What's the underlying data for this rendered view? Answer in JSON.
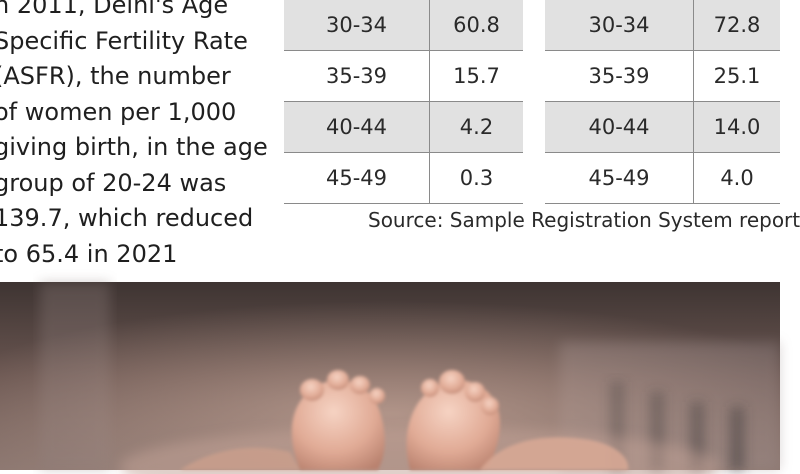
{
  "paragraph_lines": [
    "n 2011, Delhi's Age",
    "Specific Fertility Rate",
    "(ASFR), the number",
    "of women per 1,000",
    "giving birth, in the age",
    "group of 20-24 was",
    "139.7, which reduced",
    "to 65.4 in 2021"
  ],
  "table_left": {
    "rows": [
      {
        "age": "30-34",
        "value": "60.8"
      },
      {
        "age": "35-39",
        "value": "15.7"
      },
      {
        "age": "40-44",
        "value": "4.2"
      },
      {
        "age": "45-49",
        "value": "0.3"
      }
    ]
  },
  "table_right": {
    "rows": [
      {
        "age": "30-34",
        "value": "72.8"
      },
      {
        "age": "35-39",
        "value": "25.1"
      },
      {
        "age": "40-44",
        "value": "14.0"
      },
      {
        "age": "45-49",
        "value": "4.0"
      }
    ]
  },
  "source": "Source: Sample Registration System report"
}
